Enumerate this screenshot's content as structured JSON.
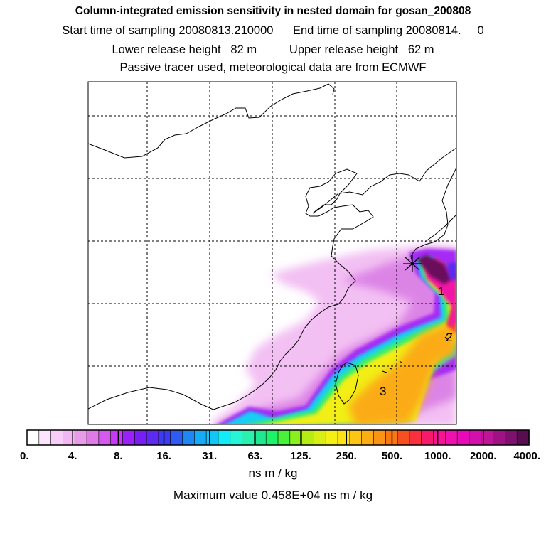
{
  "chart_data": {
    "type": "heatmap",
    "title": "Column-integrated emission sensitivity in nested domain for gosan_200808",
    "start_time_label": "Start time of sampling 20080813.210000",
    "end_time_label": "End time of sampling 20080814.     0",
    "lower_release_label": "Lower release height   82 m",
    "upper_release_label": "Upper release height   62 m",
    "tracer_note": "Passive tracer used, meteorological data are from ECMWF",
    "colorbar": {
      "tick_labels": [
        "0.",
        "4.",
        "8.",
        "16.",
        "31.",
        "63.",
        "125.",
        "250.",
        "500.",
        "1000.",
        "2000.",
        "4000."
      ],
      "colors": [
        "#ffffff",
        "#fde6fd",
        "#f8cef8",
        "#f2b6f2",
        "#e79be8",
        "#df7ae7",
        "#d359ef",
        "#c73af5",
        "#9a22f8",
        "#7a1cf4",
        "#5e2af0",
        "#3c3bf0",
        "#2e5cf2",
        "#1f86f6",
        "#16aaf8",
        "#14c6f8",
        "#12ecf8",
        "#26f5d8",
        "#2af0b0",
        "#1ee890",
        "#1cf26a",
        "#48f23a",
        "#88f01c",
        "#b4ec14",
        "#d9ee14",
        "#f4f014",
        "#fde214",
        "#fdc614",
        "#fdae14",
        "#fb9414",
        "#f97814",
        "#f75020",
        "#f83040",
        "#f81a6a",
        "#f81294",
        "#f010b0",
        "#e80ab8",
        "#d410ac",
        "#bd1498",
        "#a01284",
        "#801070",
        "#5a0c50"
      ],
      "unit_label": "ns m / kg",
      "max_value_label": "Maximum value  0.458E+04 ns m / kg",
      "max_value": 4580
    },
    "grid": true,
    "annotations": [
      "1",
      "2",
      "3"
    ],
    "release_site_marker": "x"
  }
}
